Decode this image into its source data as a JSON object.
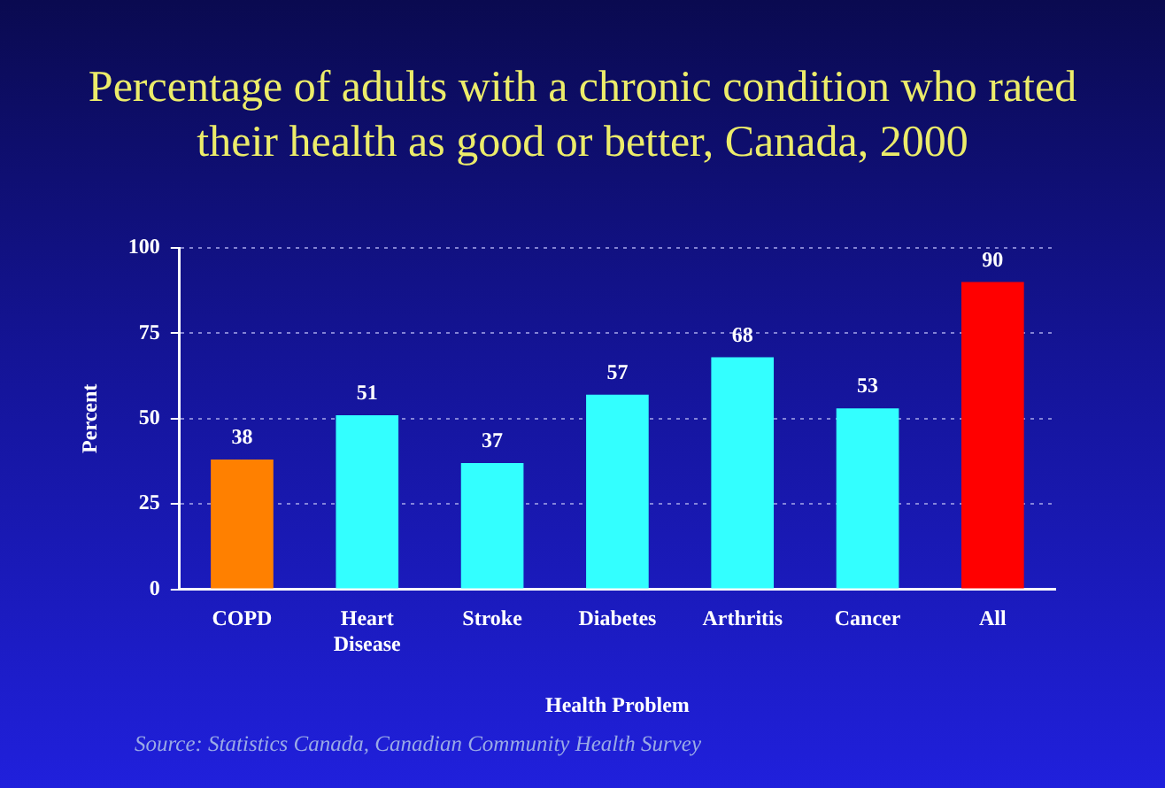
{
  "chart_data": {
    "type": "bar",
    "title": "Percentage of adults with a chronic condition who rated their health as good or better, Canada, 2000",
    "xlabel": "Health Problem",
    "ylabel": "Percent",
    "categories": [
      "COPD",
      "Heart Disease",
      "Stroke",
      "Diabetes",
      "Arthritis",
      "Cancer",
      "All"
    ],
    "values": [
      38,
      51,
      37,
      57,
      68,
      53,
      90
    ],
    "colors": [
      "#ff8000",
      "#33ffff",
      "#33ffff",
      "#33ffff",
      "#33ffff",
      "#33ffff",
      "#ff0000"
    ],
    "ylim": [
      0,
      100
    ],
    "yticks": [
      0,
      25,
      50,
      75,
      100
    ],
    "grid": "y",
    "data_labels": true,
    "annotations": [
      "Source:  Statistics Canada, Canadian Community Health Survey"
    ]
  }
}
